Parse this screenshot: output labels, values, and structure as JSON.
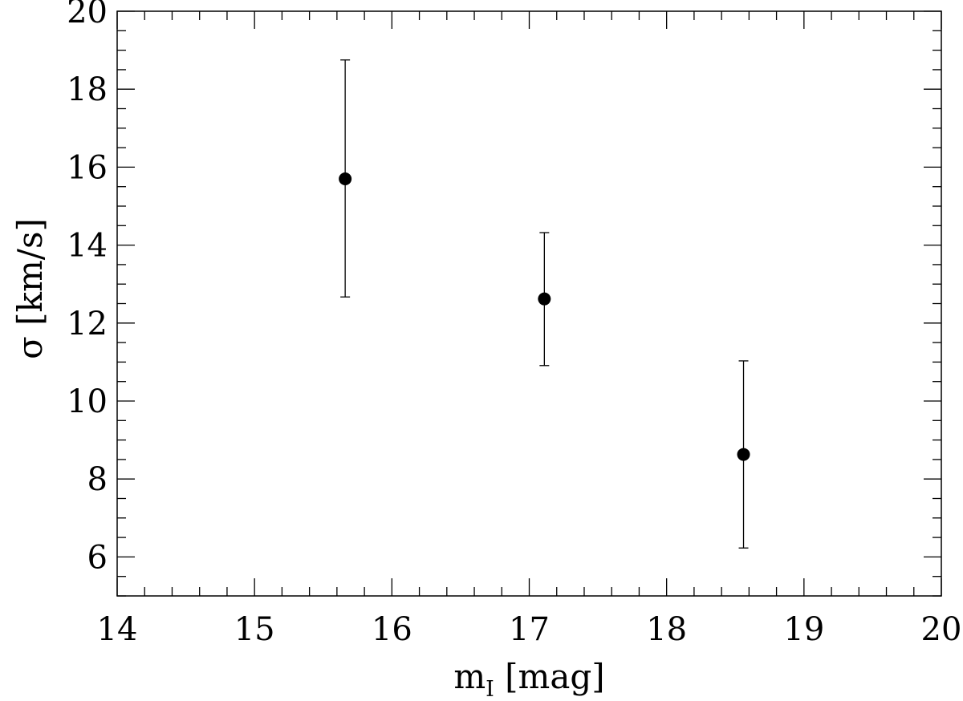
{
  "chart_data": {
    "type": "scatter",
    "title": "",
    "xlabel": {
      "base": "m",
      "sub": "I",
      "unit": " [mag]"
    },
    "ylabel": "σ [km/s]",
    "xlim": [
      14,
      20
    ],
    "ylim": [
      5,
      20
    ],
    "x_ticks": [
      "14",
      "15",
      "16",
      "17",
      "18",
      "19",
      "20"
    ],
    "y_ticks": [
      "6",
      "8",
      "10",
      "12",
      "14",
      "16",
      "18",
      "20"
    ],
    "grid": false,
    "legend": "none",
    "marker_color": "#000000",
    "series": [
      {
        "points": [
          {
            "x": 15.66,
            "y": 15.7,
            "err_low": 12.67,
            "err_high": 18.75
          },
          {
            "x": 17.11,
            "y": 12.62,
            "err_low": 10.91,
            "err_high": 14.32
          },
          {
            "x": 18.56,
            "y": 8.63,
            "err_low": 6.23,
            "err_high": 11.03
          }
        ]
      }
    ]
  }
}
